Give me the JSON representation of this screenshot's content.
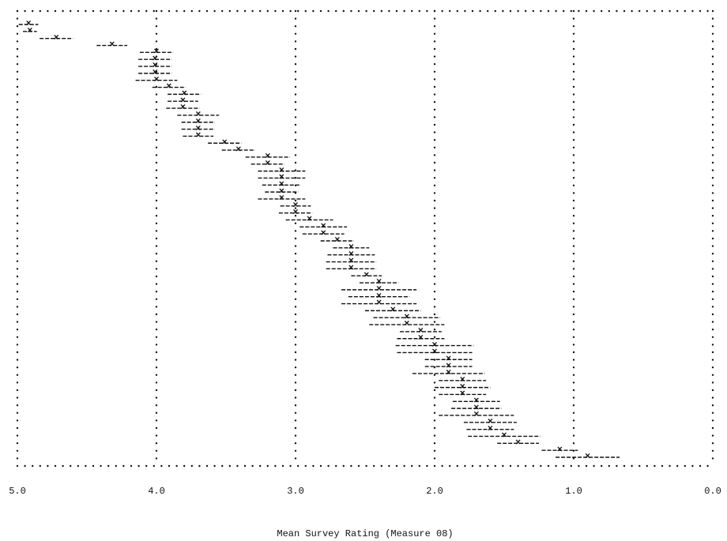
{
  "chart_data": {
    "type": "errorbar",
    "x_label": "Mean Survey Rating (Measure 08)",
    "xlim": [
      5,
      0
    ],
    "xticks": [
      {
        "value": 5,
        "label": "5.0"
      },
      {
        "value": 4,
        "label": "4.0"
      },
      {
        "value": 3,
        "label": "3.0"
      },
      {
        "value": 2,
        "label": "2.0"
      },
      {
        "value": 1,
        "label": "1.0"
      },
      {
        "value": 0,
        "label": "0.0"
      }
    ],
    "grid": true,
    "color": "#111111",
    "values": [
      4.92,
      4.91,
      4.72,
      4.32,
      4.0,
      4.01,
      4.01,
      4.01,
      4.0,
      3.91,
      3.8,
      3.81,
      3.81,
      3.7,
      3.7,
      3.7,
      3.7,
      3.51,
      3.41,
      3.2,
      3.2,
      3.1,
      3.1,
      3.1,
      3.1,
      3.1,
      3.0,
      3.0,
      2.9,
      2.8,
      2.8,
      2.7,
      2.6,
      2.6,
      2.6,
      2.6,
      2.49,
      2.4,
      2.4,
      2.4,
      2.4,
      2.3,
      2.2,
      2.2,
      2.1,
      2.1,
      2.0,
      2.0,
      1.9,
      1.9,
      1.9,
      1.8,
      1.8,
      1.8,
      1.7,
      1.7,
      1.7,
      1.6,
      1.6,
      1.5,
      1.4,
      1.1,
      0.9
    ],
    "errors": [
      0.07,
      0.05,
      0.12,
      0.11,
      0.12,
      0.12,
      0.12,
      0.12,
      0.15,
      0.12,
      0.12,
      0.11,
      0.12,
      0.15,
      0.12,
      0.12,
      0.11,
      0.12,
      0.12,
      0.16,
      0.12,
      0.17,
      0.17,
      0.14,
      0.12,
      0.17,
      0.11,
      0.12,
      0.17,
      0.17,
      0.15,
      0.12,
      0.13,
      0.17,
      0.18,
      0.18,
      0.11,
      0.14,
      0.27,
      0.22,
      0.27,
      0.2,
      0.24,
      0.27,
      0.15,
      0.17,
      0.28,
      0.27,
      0.17,
      0.17,
      0.26,
      0.17,
      0.2,
      0.17,
      0.17,
      0.18,
      0.27,
      0.19,
      0.17,
      0.26,
      0.15,
      0.13,
      0.23
    ]
  }
}
